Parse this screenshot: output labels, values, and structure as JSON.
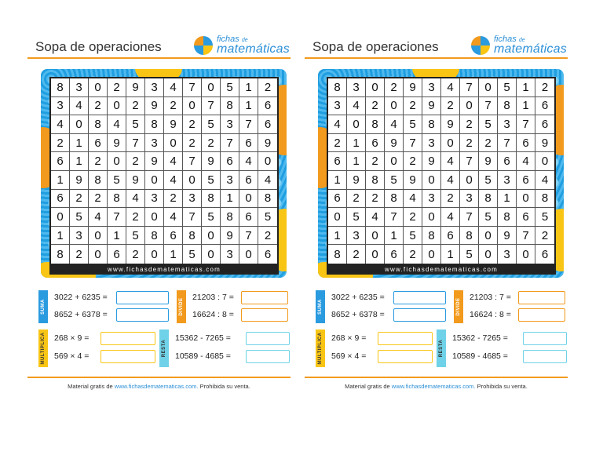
{
  "title": "Sopa de operaciones",
  "logo": {
    "line1": "fichas",
    "line1_small": "de",
    "line2": "matemáticas"
  },
  "grid": [
    [
      "8",
      "3",
      "0",
      "2",
      "9",
      "3",
      "4",
      "7",
      "0",
      "5",
      "1",
      "2"
    ],
    [
      "3",
      "4",
      "2",
      "0",
      "2",
      "9",
      "2",
      "0",
      "7",
      "8",
      "1",
      "6"
    ],
    [
      "4",
      "0",
      "8",
      "4",
      "5",
      "8",
      "9",
      "2",
      "5",
      "3",
      "7",
      "6"
    ],
    [
      "2",
      "1",
      "6",
      "9",
      "7",
      "3",
      "0",
      "2",
      "2",
      "7",
      "6",
      "9"
    ],
    [
      "6",
      "1",
      "2",
      "0",
      "2",
      "9",
      "4",
      "7",
      "9",
      "6",
      "4",
      "0"
    ],
    [
      "1",
      "9",
      "8",
      "5",
      "9",
      "0",
      "4",
      "0",
      "5",
      "3",
      "6",
      "4"
    ],
    [
      "6",
      "2",
      "2",
      "8",
      "4",
      "3",
      "2",
      "3",
      "8",
      "1",
      "0",
      "8"
    ],
    [
      "0",
      "5",
      "4",
      "7",
      "2",
      "0",
      "4",
      "7",
      "5",
      "8",
      "6",
      "5"
    ],
    [
      "1",
      "3",
      "0",
      "1",
      "5",
      "8",
      "6",
      "8",
      "0",
      "9",
      "7",
      "2"
    ],
    [
      "8",
      "2",
      "0",
      "6",
      "2",
      "0",
      "1",
      "5",
      "0",
      "3",
      "0",
      "6"
    ]
  ],
  "grid_url": "www.fichasdematematicas.com",
  "sections": {
    "suma": {
      "label": "SUMA",
      "ops": [
        "3022 + 6235 =",
        "8652 + 6378 ="
      ]
    },
    "divide": {
      "label": "DIVIDE",
      "ops": [
        "21203 : 7 =",
        "16624 : 8 ="
      ]
    },
    "multiplica": {
      "label": "MULTIPLICA",
      "ops": [
        "268 × 9 =",
        "569 × 4 ="
      ]
    },
    "resta": {
      "label": "RESTA",
      "ops": [
        "15362 - 7265 =",
        "10589 - 4685 ="
      ]
    }
  },
  "footer": {
    "prefix": "Material gratis de",
    "link": "www.fichasdematematicas.com.",
    "suffix": "Prohibida su venta."
  },
  "colors": {
    "orange": "#f29a1d",
    "blue": "#2b9be0",
    "yellow": "#f9c515",
    "cyan": "#6fd2e8"
  }
}
